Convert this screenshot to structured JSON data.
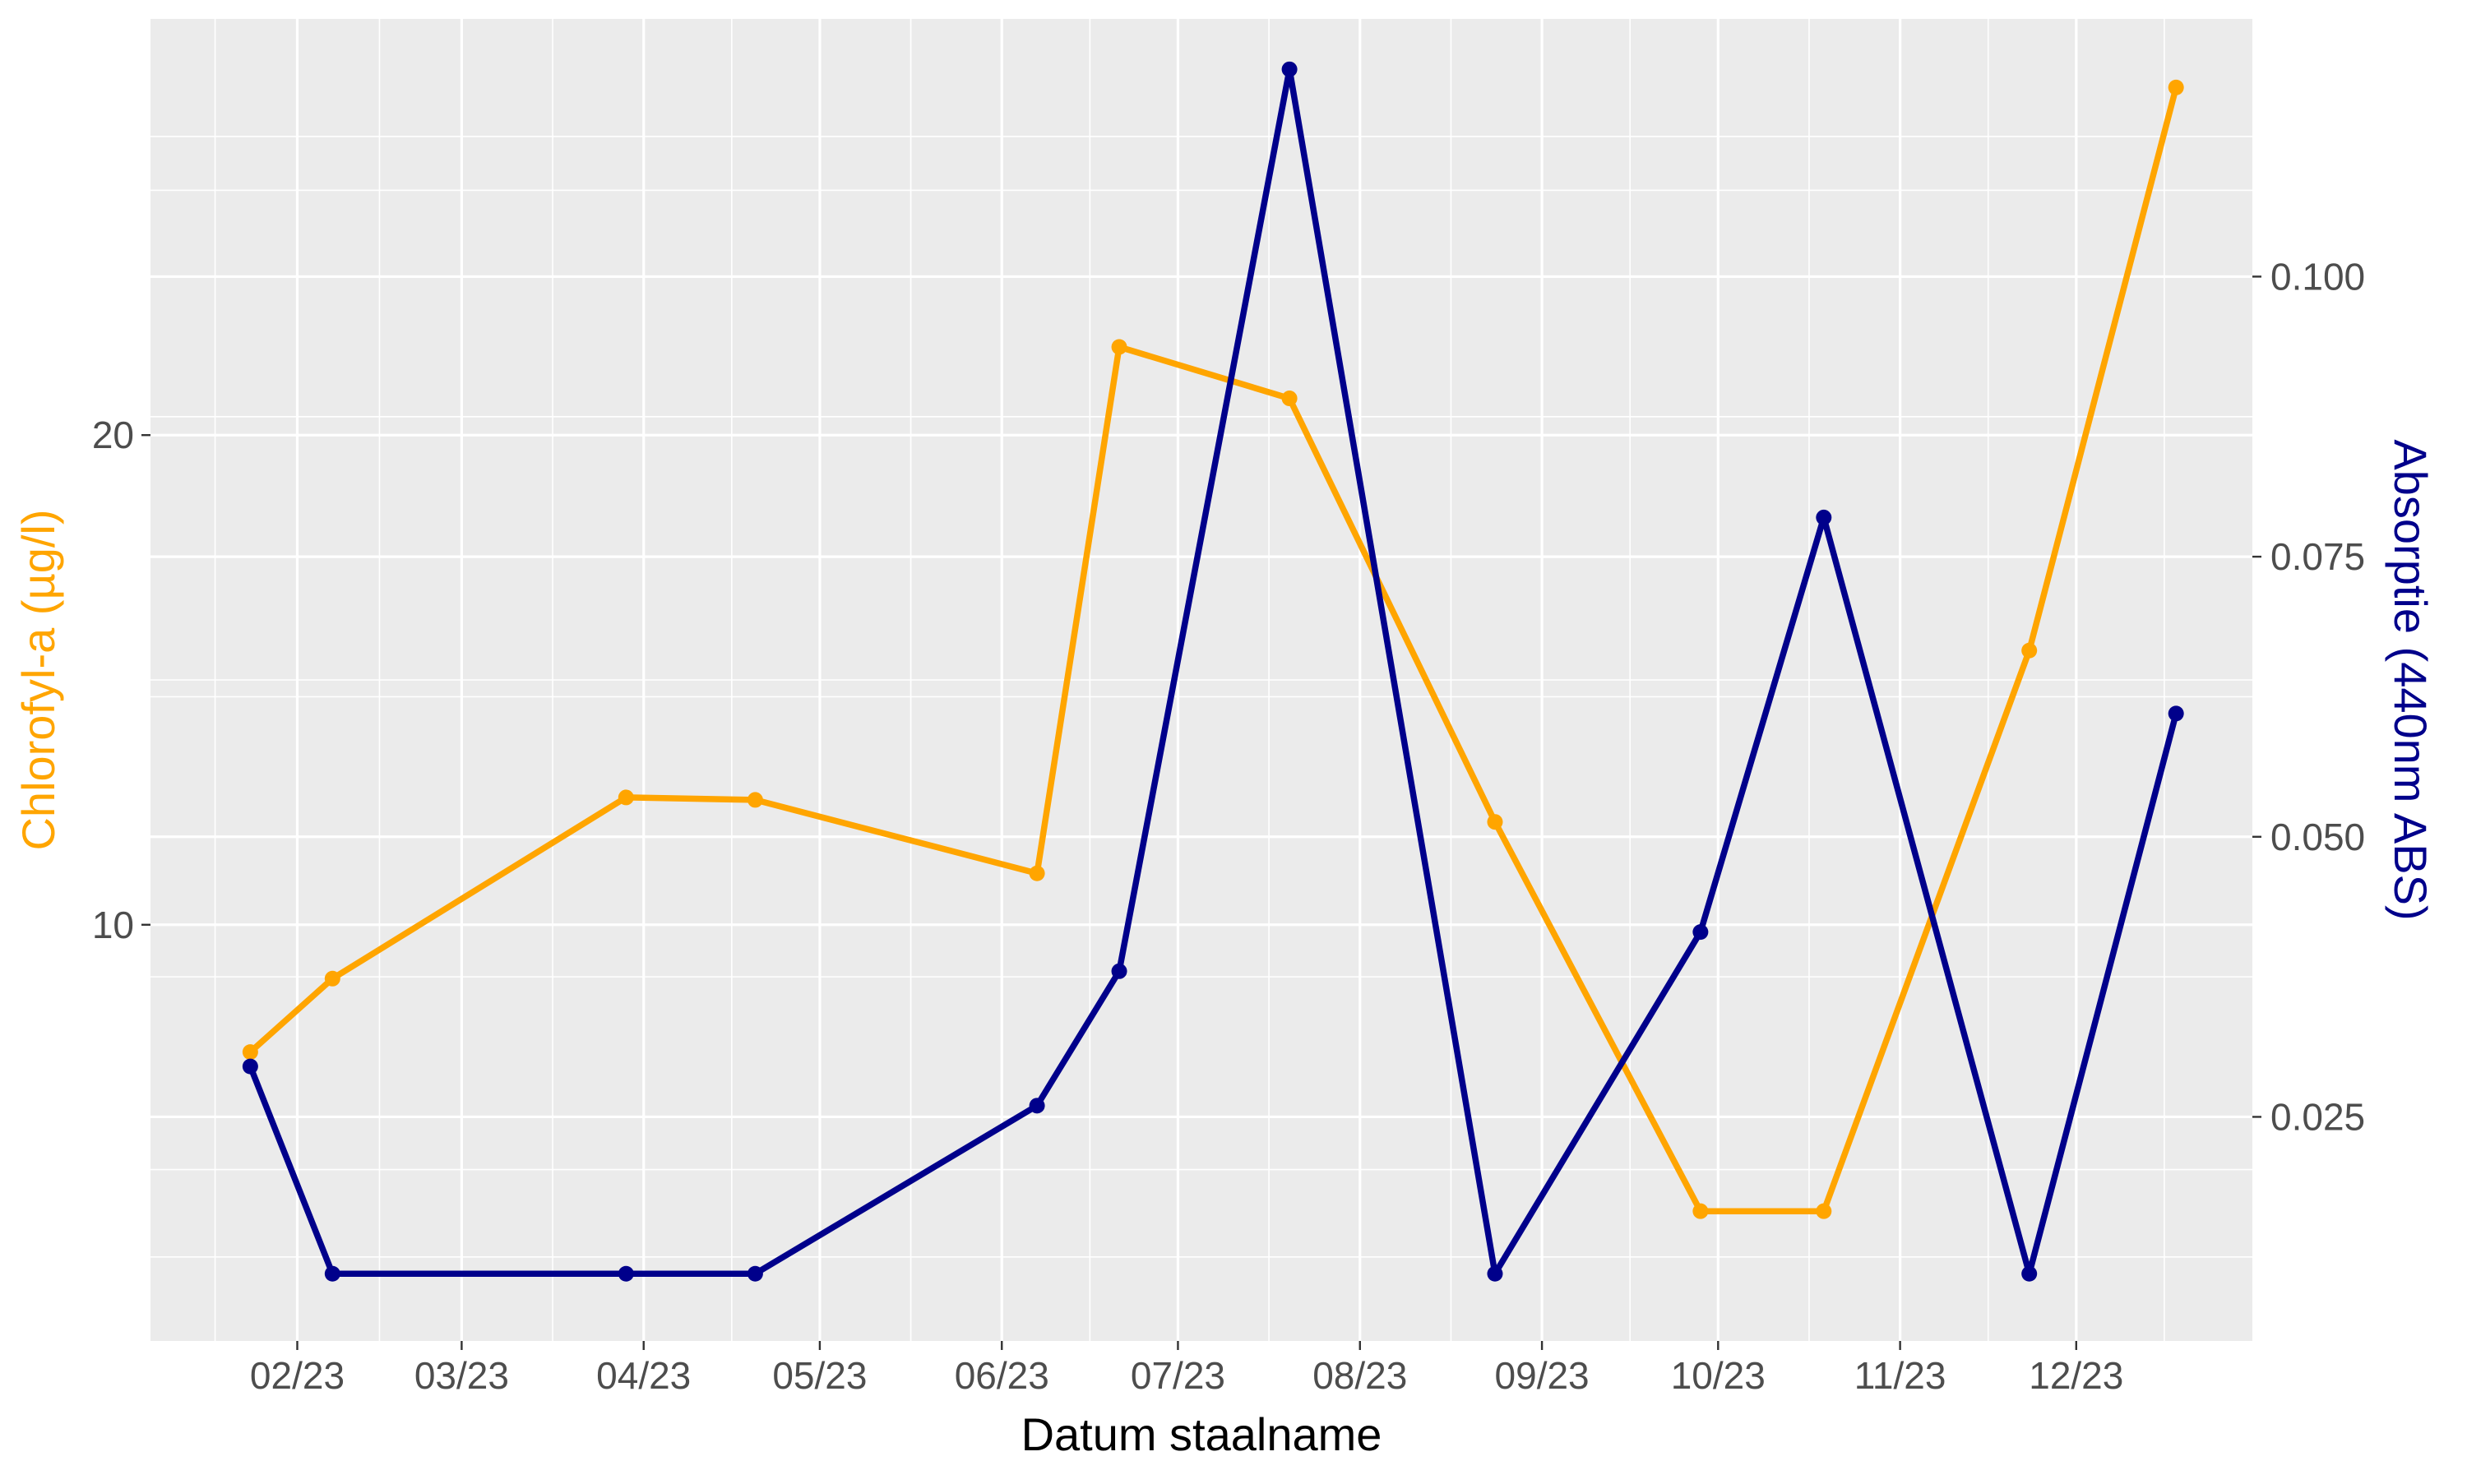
{
  "chart_data": {
    "type": "line",
    "xlabel": "Datum staalname",
    "ylabel_left": "Chlorofyl-a (µg/l)",
    "ylabel_right": "Absorptie (440nm ABS)",
    "x_axis": {
      "type": "date",
      "range": [
        "2023-01-07",
        "2023-12-31"
      ],
      "ticks": [
        {
          "date": "2023-02-01",
          "label": "02/23"
        },
        {
          "date": "2023-03-01",
          "label": "03/23"
        },
        {
          "date": "2023-04-01",
          "label": "04/23"
        },
        {
          "date": "2023-05-01",
          "label": "05/23"
        },
        {
          "date": "2023-06-01",
          "label": "06/23"
        },
        {
          "date": "2023-07-01",
          "label": "07/23"
        },
        {
          "date": "2023-08-01",
          "label": "08/23"
        },
        {
          "date": "2023-09-01",
          "label": "09/23"
        },
        {
          "date": "2023-10-01",
          "label": "10/23"
        },
        {
          "date": "2023-11-01",
          "label": "11/23"
        },
        {
          "date": "2023-12-01",
          "label": "12/23"
        }
      ]
    },
    "y_left": {
      "range": [
        1.5,
        28.5
      ],
      "ticks": [
        {
          "value": 10,
          "label": "10"
        },
        {
          "value": 20,
          "label": "20"
        }
      ],
      "minor": [
        5,
        15,
        25
      ]
    },
    "y_right": {
      "range": [
        0.005,
        0.123
      ],
      "ticks": [
        {
          "value": 0.025,
          "label": "0.025"
        },
        {
          "value": 0.05,
          "label": "0.050"
        },
        {
          "value": 0.075,
          "label": "0.075"
        },
        {
          "value": 0.1,
          "label": "0.100"
        }
      ],
      "minor": [
        0.0125,
        0.0375,
        0.0625,
        0.0875,
        0.1125
      ]
    },
    "grid": true,
    "series": [
      {
        "color": "#FFA500",
        "axis": "left",
        "points": [
          {
            "x": "2023-01-24",
            "y": 7.4
          },
          {
            "x": "2023-02-07",
            "y": 8.9
          },
          {
            "x": "2023-03-29",
            "y": 12.6
          },
          {
            "x": "2023-04-20",
            "y": 12.55
          },
          {
            "x": "2023-06-07",
            "y": 11.05
          },
          {
            "x": "2023-06-21",
            "y": 21.8
          },
          {
            "x": "2023-07-20",
            "y": 20.75
          },
          {
            "x": "2023-08-24",
            "y": 12.1
          },
          {
            "x": "2023-09-28",
            "y": 4.15
          },
          {
            "x": "2023-10-19",
            "y": 4.15
          },
          {
            "x": "2023-11-23",
            "y": 15.6
          },
          {
            "x": "2023-12-18",
            "y": 27.1
          }
        ]
      },
      {
        "color": "#00008B",
        "axis": "right",
        "points": [
          {
            "x": "2023-01-24",
            "y": 0.0295
          },
          {
            "x": "2023-02-07",
            "y": 0.011
          },
          {
            "x": "2023-03-29",
            "y": 0.011
          },
          {
            "x": "2023-04-20",
            "y": 0.011
          },
          {
            "x": "2023-06-07",
            "y": 0.026
          },
          {
            "x": "2023-06-21",
            "y": 0.038
          },
          {
            "x": "2023-07-20",
            "y": 0.1185
          },
          {
            "x": "2023-08-24",
            "y": 0.011
          },
          {
            "x": "2023-09-28",
            "y": 0.0415
          },
          {
            "x": "2023-10-19",
            "y": 0.0785
          },
          {
            "x": "2023-11-23",
            "y": 0.011
          },
          {
            "x": "2023-12-18",
            "y": 0.061
          }
        ]
      }
    ]
  },
  "colors": {
    "panel_background": "#EBEBEB",
    "grid": "#FFFFFF",
    "left_axis_text": "#FFA500",
    "right_axis_text": "#00008B",
    "bottom_axis_text": "#4D4D4D"
  }
}
